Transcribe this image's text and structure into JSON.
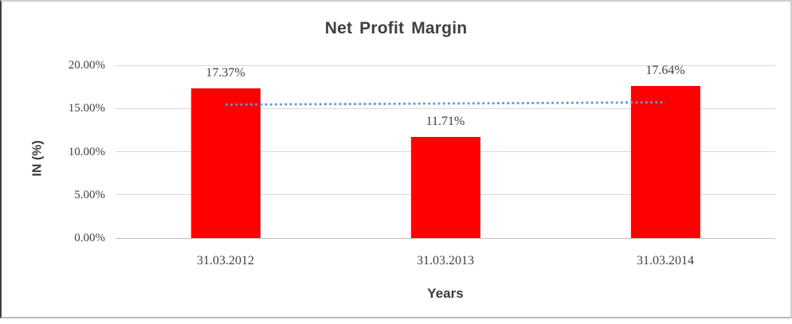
{
  "chart_data": {
    "type": "bar",
    "title": "Net Profit Margin",
    "xlabel": "Years",
    "ylabel": "IN (%)",
    "categories": [
      "31.03.2012",
      "31.03.2013",
      "31.03.2014"
    ],
    "series": [
      {
        "name": "Net Profit Margin",
        "color": "#fe0000",
        "values": [
          17.37,
          11.71,
          17.64
        ]
      }
    ],
    "data_labels": [
      "17.37%",
      "11.71%",
      "17.64%"
    ],
    "y_ticks": [
      {
        "value": 0,
        "label": "0.00%"
      },
      {
        "value": 5,
        "label": "5.00%"
      },
      {
        "value": 10,
        "label": "10.00%"
      },
      {
        "value": 15,
        "label": "15.00%"
      },
      {
        "value": 20,
        "label": "20.00%"
      }
    ],
    "ylim": [
      0,
      20
    ],
    "grid": true,
    "legend": "none",
    "trendline": {
      "type": "linear",
      "style": "dotted",
      "color": "#5b9bd5",
      "start_value": 15.44,
      "end_value": 15.71
    }
  },
  "colors": {
    "bar": "#fe0000",
    "trendline": "#5b9bd5",
    "gridline": "#d9d9d9",
    "axis_line": "#bfbfbf",
    "text": "#3f3f3f",
    "background": "#ffffff"
  }
}
